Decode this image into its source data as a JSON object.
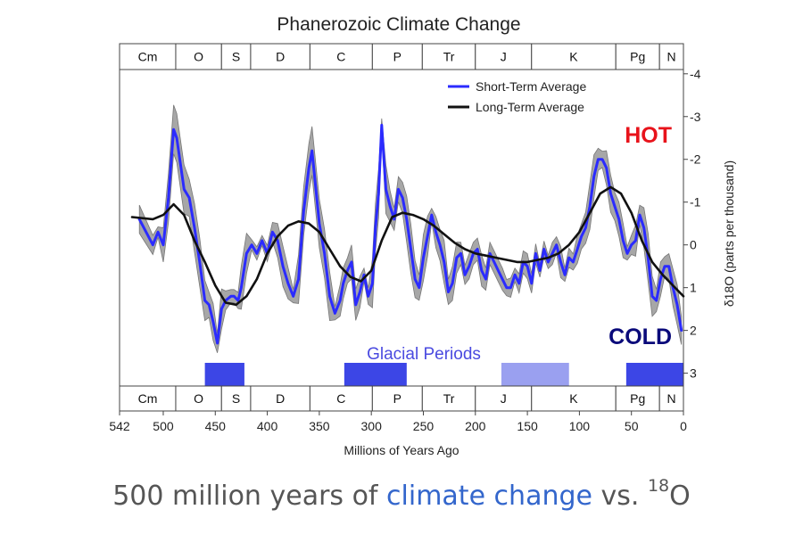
{
  "chart_data": {
    "type": "line",
    "title": "Phanerozoic Climate Change",
    "xlabel": "Millions of Years Ago",
    "ylabel": "δ18O (parts per thousand)",
    "xlim": [
      542,
      0
    ],
    "ylim": [
      3.3,
      -4.1
    ],
    "x_ticks": [
      542,
      500,
      450,
      400,
      350,
      300,
      250,
      200,
      150,
      100,
      50,
      0
    ],
    "y_ticks": [
      -4,
      -3,
      -2,
      -1,
      0,
      1,
      2,
      3
    ],
    "periods": [
      {
        "label": "Cm",
        "start": 542,
        "end": 488
      },
      {
        "label": "O",
        "start": 488,
        "end": 444
      },
      {
        "label": "S",
        "start": 444,
        "end": 416
      },
      {
        "label": "D",
        "start": 416,
        "end": 359
      },
      {
        "label": "C",
        "start": 359,
        "end": 299
      },
      {
        "label": "P",
        "start": 299,
        "end": 251
      },
      {
        "label": "Tr",
        "start": 251,
        "end": 200
      },
      {
        "label": "J",
        "start": 200,
        "end": 146
      },
      {
        "label": "K",
        "start": 146,
        "end": 65
      },
      {
        "label": "Pg",
        "start": 65,
        "end": 23
      },
      {
        "label": "N",
        "start": 23,
        "end": 0
      }
    ],
    "series": [
      {
        "name": "Short-Term Average",
        "color": "#2b2bff",
        "x": [
          523,
          510,
          505,
          500,
          495,
          490,
          487,
          480,
          475,
          470,
          465,
          460,
          456,
          452,
          448,
          444,
          440,
          435,
          432,
          428,
          425,
          420,
          415,
          410,
          405,
          400,
          395,
          390,
          385,
          380,
          375,
          370,
          365,
          360,
          357,
          350,
          345,
          340,
          335,
          330,
          327,
          323,
          319,
          315,
          311,
          307,
          303,
          299,
          296,
          293,
          290,
          286,
          282,
          278,
          274,
          270,
          266,
          262,
          258,
          254,
          250,
          246,
          242,
          238,
          234,
          230,
          226,
          222,
          218,
          214,
          210,
          206,
          202,
          198,
          194,
          190,
          186,
          182,
          178,
          174,
          170,
          166,
          162,
          158,
          154,
          150,
          146,
          142,
          138,
          134,
          130,
          126,
          122,
          118,
          114,
          110,
          106,
          102,
          98,
          94,
          90,
          86,
          82,
          78,
          74,
          70,
          66,
          62,
          58,
          54,
          50,
          46,
          42,
          38,
          34,
          30,
          26,
          22,
          18,
          14,
          10,
          6,
          2
        ],
        "y": [
          -0.6,
          0,
          -0.3,
          0,
          -1.1,
          -2.7,
          -2.5,
          -1.3,
          -1.1,
          -0.4,
          0.4,
          1.3,
          1.4,
          1.8,
          2.3,
          1.5,
          1.3,
          1.2,
          1.2,
          1.3,
          1.0,
          0.2,
          0.0,
          0.2,
          -0.1,
          0.2,
          -0.3,
          -0.1,
          0.5,
          0.9,
          1.2,
          0.8,
          -0.8,
          -1.8,
          -2.2,
          -0.5,
          0.2,
          1.2,
          1.6,
          1.3,
          0.9,
          0.6,
          0.4,
          1.4,
          1.1,
          0.7,
          1.2,
          0.9,
          -0.4,
          -1.2,
          -2.8,
          -1.3,
          -0.9,
          -0.6,
          -1.3,
          -1.1,
          -0.6,
          0.1,
          0.8,
          1.0,
          0.3,
          -0.2,
          -0.7,
          -0.3,
          0.0,
          0.4,
          1.1,
          0.9,
          0.3,
          0.2,
          0.7,
          0.5,
          0.2,
          0.1,
          0.6,
          0.8,
          0.2,
          0.4,
          0.6,
          0.8,
          1.0,
          1.0,
          0.7,
          0.9,
          0.4,
          0.5,
          0.9,
          0.2,
          0.6,
          0.1,
          0.4,
          0.2,
          0.0,
          0.4,
          0.7,
          0.3,
          0.4,
          0.1,
          -0.2,
          -0.4,
          -0.9,
          -1.6,
          -2.0,
          -2.0,
          -1.8,
          -1.2,
          -0.9,
          -0.6,
          -0.1,
          0.2,
          0.0,
          -0.1,
          -0.7,
          -0.4,
          0.3,
          1.2,
          1.3,
          0.8,
          0.5,
          0.5,
          1.0,
          1.4,
          2.0
        ]
      },
      {
        "name": "Long-Term Average",
        "color": "#111111",
        "x": [
          530,
          510,
          500,
          490,
          480,
          470,
          460,
          450,
          440,
          430,
          420,
          410,
          400,
          390,
          380,
          370,
          360,
          350,
          340,
          330,
          320,
          310,
          300,
          290,
          280,
          270,
          260,
          250,
          240,
          230,
          220,
          210,
          200,
          190,
          180,
          170,
          160,
          150,
          140,
          130,
          120,
          110,
          100,
          90,
          80,
          70,
          60,
          50,
          40,
          30,
          20,
          10,
          0
        ],
        "y": [
          -0.65,
          -0.6,
          -0.7,
          -0.95,
          -0.7,
          -0.1,
          0.4,
          0.95,
          1.35,
          1.4,
          1.2,
          0.8,
          0.2,
          -0.2,
          -0.45,
          -0.55,
          -0.5,
          -0.3,
          0.1,
          0.5,
          0.75,
          0.85,
          0.6,
          -0.1,
          -0.65,
          -0.75,
          -0.7,
          -0.6,
          -0.45,
          -0.25,
          -0.05,
          0.1,
          0.2,
          0.25,
          0.3,
          0.35,
          0.4,
          0.4,
          0.35,
          0.3,
          0.2,
          0.0,
          -0.3,
          -0.75,
          -1.2,
          -1.35,
          -1.2,
          -0.75,
          -0.1,
          0.4,
          0.7,
          0.95,
          1.2
        ]
      }
    ],
    "glacial_periods": {
      "label": "Glacial Periods",
      "bands": [
        {
          "start": 460,
          "end": 422,
          "color": "#3c46e6"
        },
        {
          "start": 326,
          "end": 266,
          "color": "#3c46e6"
        },
        {
          "start": 175,
          "end": 110,
          "color": "#9aa0f0"
        },
        {
          "start": 55,
          "end": 0,
          "color": "#3c46e6"
        }
      ]
    },
    "annotations": [
      {
        "text": "HOT",
        "color": "#e8131b"
      },
      {
        "text": "COLD",
        "color": "#0a0a7a"
      }
    ],
    "legend_position": "top-right"
  },
  "caption": {
    "prefix": "500 million years of ",
    "link": "climate change",
    "middle": " vs. ",
    "superscript": "18",
    "suffix": "O"
  }
}
